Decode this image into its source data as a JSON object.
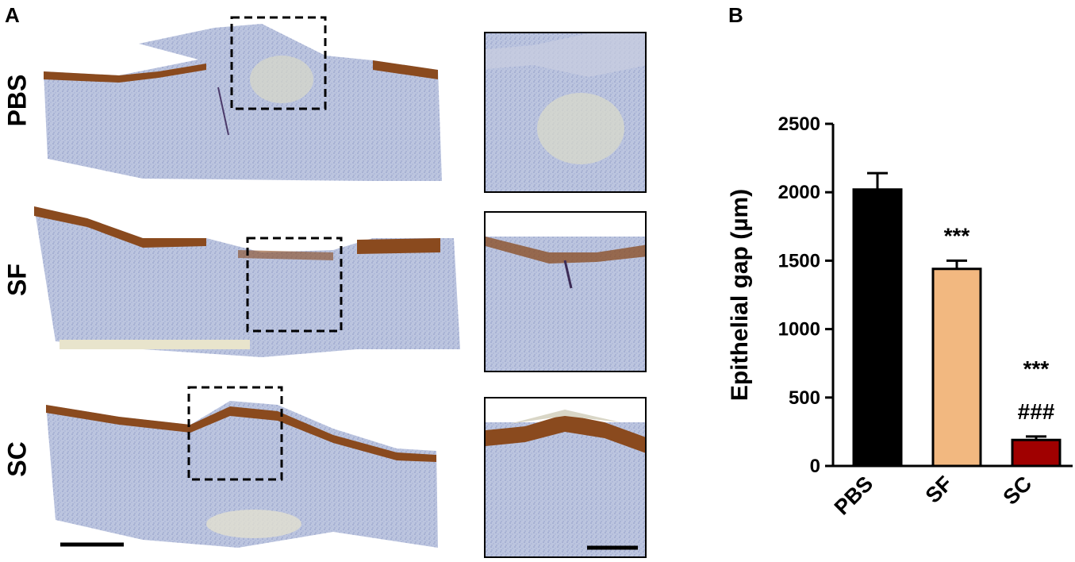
{
  "panels": {
    "a_letter": "A",
    "b_letter": "B"
  },
  "histology": {
    "rows": [
      {
        "label": "PBS"
      },
      {
        "label": "SF"
      },
      {
        "label": "SC"
      }
    ],
    "colors": {
      "stroma": "#b9c2dd",
      "stroma_dark": "#8f9cc8",
      "epithelium": "#8a4a1e",
      "background_pale": "#e8e4cc"
    }
  },
  "chart_data": {
    "type": "bar",
    "categories": [
      "PBS",
      "SF",
      "SC"
    ],
    "values": [
      2020,
      1440,
      190
    ],
    "errors": [
      120,
      60,
      25
    ],
    "colors": [
      "#000000",
      "#f2b880",
      "#a00000"
    ],
    "ylabel": "Epithelial gap (µm)",
    "ylim": [
      0,
      2500
    ],
    "yticks": [
      0,
      500,
      1000,
      1500,
      2000,
      2500
    ],
    "annotations": [
      {
        "category": "SF",
        "lines": [
          "***"
        ]
      },
      {
        "category": "SC",
        "lines": [
          "***",
          "###"
        ]
      }
    ],
    "grid": false
  }
}
